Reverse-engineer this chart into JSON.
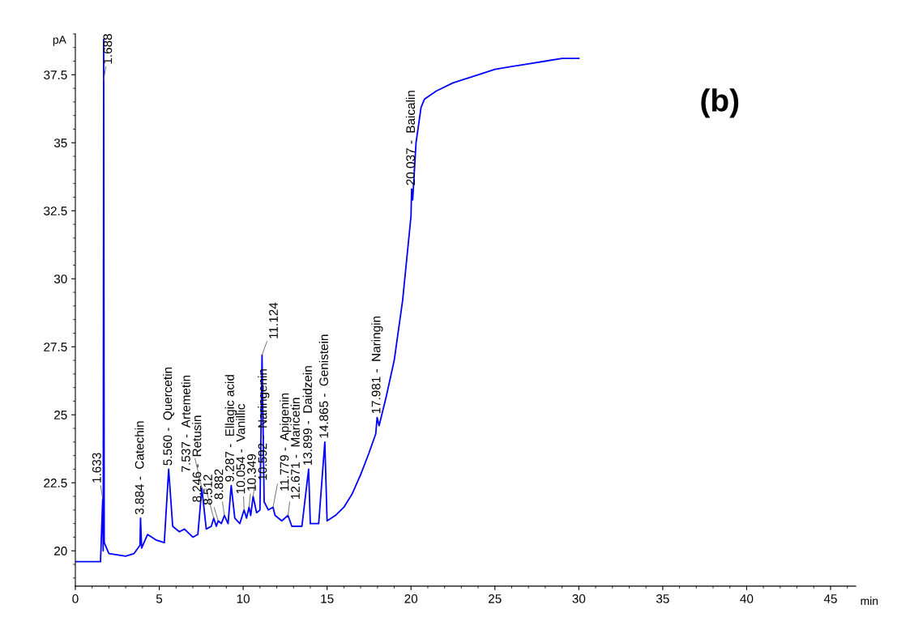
{
  "chart_data": {
    "type": "line",
    "xlabel": "min",
    "ylabel": "pA",
    "xlim": [
      0,
      46.5
    ],
    "ylim": [
      18.7,
      39
    ],
    "xticks": [
      0,
      5,
      10,
      15,
      20,
      25,
      30,
      35,
      40,
      45
    ],
    "yticks": [
      20,
      22.5,
      25,
      27.5,
      30,
      32.5,
      35,
      37.5
    ],
    "grid": false,
    "legend": false,
    "marker": "none",
    "line_style": "solid",
    "series": [
      {
        "color": "#0000ff",
        "x": [
          0,
          1.5,
          1.63,
          1.66,
          1.688,
          1.72,
          2.0,
          3.0,
          3.5,
          3.85,
          3.884,
          3.95,
          4.3,
          4.8,
          5.3,
          5.56,
          5.8,
          6.2,
          6.5,
          7.0,
          7.3,
          7.537,
          7.8,
          8.1,
          8.246,
          8.4,
          8.512,
          8.7,
          8.882,
          9.1,
          9.287,
          9.5,
          9.8,
          10.054,
          10.2,
          10.349,
          10.45,
          10.592,
          10.8,
          11.0,
          11.124,
          11.25,
          11.5,
          11.779,
          11.9,
          12.3,
          12.671,
          12.9,
          13.5,
          13.899,
          14.0,
          14.5,
          14.865,
          15.0,
          15.5,
          16.0,
          16.5,
          17.0,
          17.5,
          17.9,
          17.981,
          18.1,
          18.5,
          19.0,
          19.5,
          20.0,
          20.037,
          20.1,
          20.3,
          20.6,
          20.8,
          21.5,
          22.5,
          24,
          25,
          26,
          27,
          28,
          29,
          30
        ],
        "values": [
          19.6,
          19.6,
          21.9,
          20.0,
          38.8,
          20.3,
          19.9,
          19.8,
          19.9,
          20.2,
          21.2,
          20.1,
          20.6,
          20.4,
          20.3,
          23.0,
          20.9,
          20.7,
          20.8,
          20.5,
          20.6,
          22.3,
          20.8,
          20.9,
          21.2,
          20.9,
          21.1,
          21.0,
          21.3,
          21.0,
          22.4,
          21.2,
          21.0,
          21.5,
          21.2,
          21.6,
          21.3,
          22.0,
          21.4,
          21.5,
          27.2,
          21.8,
          21.5,
          21.6,
          21.3,
          21.1,
          21.3,
          20.9,
          20.9,
          23.0,
          21.0,
          21.0,
          24.0,
          21.1,
          21.3,
          21.6,
          22.1,
          22.8,
          23.6,
          24.3,
          24.9,
          24.6,
          25.6,
          27.0,
          29.2,
          32.3,
          33.3,
          32.9,
          35.0,
          36.3,
          36.6,
          36.9,
          37.2,
          37.5,
          37.7,
          37.8,
          37.9,
          38.0,
          38.1,
          38.1
        ]
      }
    ],
    "annotations": [
      "(b)",
      {
        "text": "1.633",
        "x": 1.633,
        "y": 21.9
      },
      {
        "text": "1.688",
        "x": 1.688,
        "y": 37.3
      },
      {
        "text": "3.884 -  Catechin",
        "x": 3.884,
        "y": 21.2
      },
      {
        "text": "5.560 -  Quercetin",
        "x": 5.56,
        "y": 23.0
      },
      {
        "text": "7.537 -  Artemetin",
        "x": 7.537,
        "y": 22.3
      },
      {
        "text": "8.246 -  Retusin",
        "x": 8.246,
        "y": 21.2
      },
      {
        "text": "8.512",
        "x": 8.512,
        "y": 21.1
      },
      {
        "text": "8.882",
        "x": 8.882,
        "y": 21.3
      },
      {
        "text": "9.287 -  Ellagic acid",
        "x": 9.287,
        "y": 22.4
      },
      {
        "text": "10.054 -  Vanillic",
        "x": 10.054,
        "y": 21.5
      },
      {
        "text": "10.349",
        "x": 10.349,
        "y": 21.6
      },
      {
        "text": "10.592 -  Naringenin",
        "x": 10.592,
        "y": 22.0
      },
      {
        "text": "11.124",
        "x": 11.124,
        "y": 27.2
      },
      {
        "text": "11.779 -  Apigenin",
        "x": 11.779,
        "y": 21.6
      },
      {
        "text": "12.671 -  Maricetin",
        "x": 12.671,
        "y": 21.3
      },
      {
        "text": "13.899 -  Daidzein",
        "x": 13.899,
        "y": 23.0
      },
      {
        "text": "14.865 -  Genistein",
        "x": 14.865,
        "y": 24.0
      },
      {
        "text": "17.981 -  Naringin",
        "x": 17.981,
        "y": 24.9
      },
      {
        "text": "20.037 -  Baicalin",
        "x": 20.037,
        "y": 33.3
      }
    ]
  }
}
